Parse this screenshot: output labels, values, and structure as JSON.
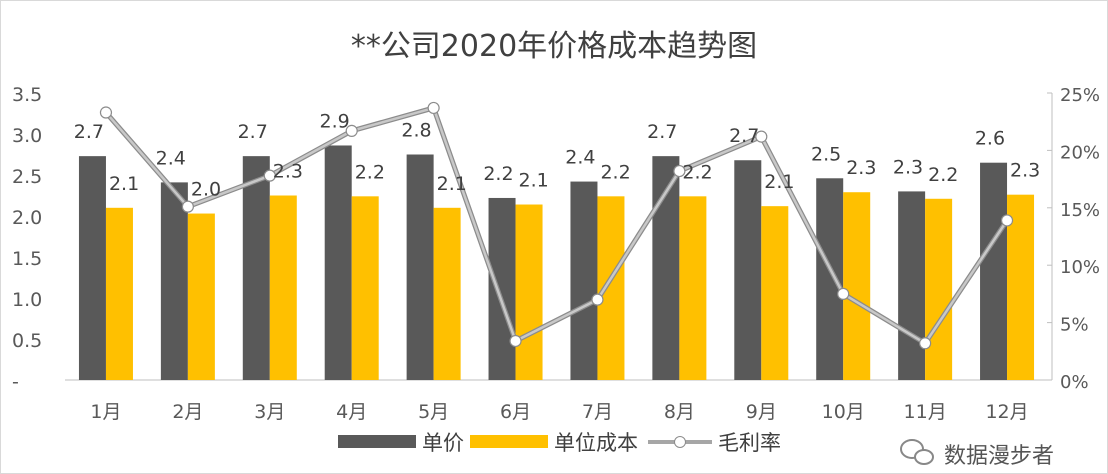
{
  "chart_data": {
    "type": "bar+line",
    "title": "**公司2020年价格成本趋势图",
    "categories": [
      "1月",
      "2月",
      "3月",
      "4月",
      "5月",
      "6月",
      "7月",
      "8月",
      "9月",
      "10月",
      "11月",
      "12月"
    ],
    "series": [
      {
        "name": "单价",
        "type": "bar",
        "axis": "left",
        "color": "#595959",
        "values": [
          2.73,
          2.41,
          2.73,
          2.86,
          2.75,
          2.22,
          2.42,
          2.73,
          2.68,
          2.46,
          2.3,
          2.65
        ],
        "labels": [
          "2.7",
          "2.4",
          "2.7",
          "2.9",
          "2.8",
          "2.2",
          "2.4",
          "2.7",
          "2.7",
          "2.5",
          "2.3",
          "2.6"
        ]
      },
      {
        "name": "单位成本",
        "type": "bar",
        "axis": "left",
        "color": "#FFC000",
        "values": [
          2.1,
          2.03,
          2.25,
          2.24,
          2.1,
          2.14,
          2.24,
          2.24,
          2.12,
          2.29,
          2.21,
          2.26
        ],
        "labels": [
          "2.1",
          "2.0",
          "2.3",
          "2.2",
          "2.1",
          "2.1",
          "2.2",
          "2.2",
          "2.1",
          "2.3",
          "2.2",
          "2.3"
        ]
      },
      {
        "name": "毛利率",
        "type": "line",
        "axis": "right",
        "color": "#A6A6A6",
        "values": [
          23.3,
          15.1,
          17.8,
          21.7,
          23.7,
          3.4,
          7.0,
          18.2,
          21.2,
          7.5,
          3.2,
          13.9
        ]
      }
    ],
    "left_axis": {
      "range": [
        0,
        3.5
      ],
      "ticks": [
        "-",
        "0.5",
        "1.0",
        "1.5",
        "2.0",
        "2.5",
        "3.0",
        "3.5"
      ]
    },
    "right_axis": {
      "range": [
        0,
        25
      ],
      "ticks": [
        "0%",
        "5%",
        "10%",
        "15%",
        "20%",
        "25%"
      ]
    },
    "grid": false,
    "legend": "bottom"
  },
  "watermark": "数据漫步者"
}
